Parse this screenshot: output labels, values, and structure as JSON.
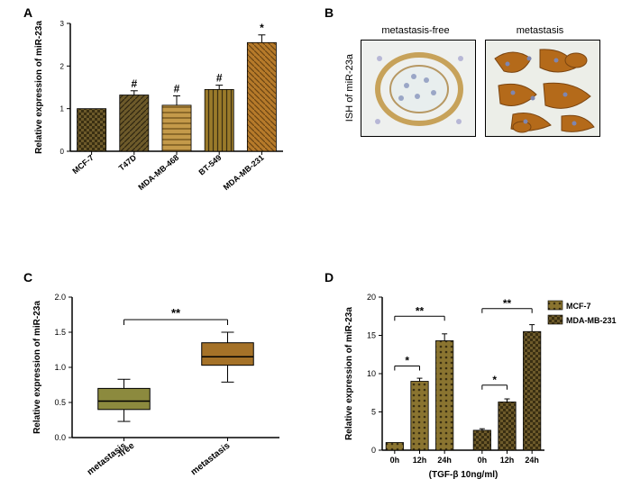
{
  "panelA": {
    "label": "A",
    "type": "bar",
    "ylabel": "Relative expression of miR-23a",
    "categories": [
      "MCF-7",
      "T47D",
      "MDA-MB-468",
      "BT-549",
      "MDA-MB-231"
    ],
    "values": [
      1.0,
      1.32,
      1.08,
      1.45,
      2.55
    ],
    "errors": [
      0.0,
      0.1,
      0.22,
      0.1,
      0.18
    ],
    "sig_markers": [
      "",
      "#",
      "#",
      "#",
      "*"
    ],
    "bar_colors": [
      "#6d5a2a",
      "#6d5a2a",
      "#ad7e3a",
      "#8c6a2a",
      "#b67a2a"
    ],
    "patterns": [
      "checker",
      "diag1",
      "hlines",
      "vlines",
      "diag2"
    ],
    "ylim": [
      0,
      3
    ],
    "ytick_step": 1,
    "axis_color": "#000000",
    "label_fontsize": 10,
    "tick_fontsize": 8,
    "bar_width": 0.68
  },
  "panelB": {
    "label": "B",
    "ylabel": "ISH of miR-23a",
    "titles": [
      "metastasis-free",
      "metastasis"
    ],
    "title_fontsize": 11
  },
  "panelC": {
    "label": "C",
    "type": "boxplot",
    "ylabel": "Relative expression of miR-23a",
    "categories": [
      "metastasis\n-free",
      "metastasis"
    ],
    "boxes": [
      {
        "min": 0.23,
        "q1": 0.4,
        "median": 0.52,
        "q3": 0.7,
        "max": 0.83,
        "fill": "#8c8a3e"
      },
      {
        "min": 0.79,
        "q1": 1.03,
        "median": 1.15,
        "q3": 1.35,
        "max": 1.5,
        "fill": "#a57228"
      }
    ],
    "ylim": [
      0.0,
      2.0
    ],
    "ytick_step": 0.5,
    "sig": "**",
    "axis_color": "#000000",
    "label_fontsize": 10,
    "tick_fontsize": 9,
    "box_width": 0.5
  },
  "panelD": {
    "label": "D",
    "type": "grouped-bar",
    "ylabel": "Relative expression of miR-23a",
    "xlabel": "(TGF-β 10ng/ml)",
    "legend": [
      "MCF-7",
      "MDA-MB-231"
    ],
    "legend_patterns": [
      "dots",
      "checker"
    ],
    "legend_color": "#6d5a2a",
    "groups": [
      {
        "name": "MCF-7",
        "labels": [
          "0h",
          "12h",
          "24h"
        ],
        "values": [
          1.0,
          9.0,
          14.3
        ],
        "errors": [
          0.0,
          0.4,
          0.9
        ],
        "pattern": "dots"
      },
      {
        "name": "MDA-MB-231",
        "labels": [
          "0h",
          "12h",
          "24h"
        ],
        "values": [
          2.6,
          6.3,
          15.5
        ],
        "errors": [
          0.2,
          0.4,
          0.9
        ],
        "pattern": "checker"
      }
    ],
    "sig_top": [
      {
        "group": 0,
        "span": [
          0,
          2
        ],
        "label": "**",
        "y": 17.5
      },
      {
        "group": 1,
        "span": [
          0,
          2
        ],
        "label": "**",
        "y": 18.5
      }
    ],
    "sig_mid": [
      {
        "group": 0,
        "span": [
          0,
          1
        ],
        "label": "*",
        "y": 11
      },
      {
        "group": 1,
        "span": [
          0,
          1
        ],
        "label": "*",
        "y": 8.5
      }
    ],
    "ylim": [
      0,
      20
    ],
    "ytick_step": 5,
    "bar_color": "#6d5a2a",
    "axis_color": "#000000",
    "label_fontsize": 10,
    "tick_fontsize": 9,
    "bar_width": 0.7
  }
}
